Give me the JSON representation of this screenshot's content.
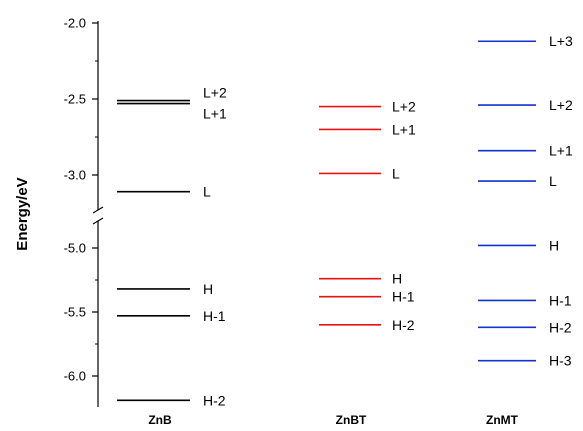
{
  "chart_data": {
    "type": "energy-level diagram",
    "title": "",
    "ylabel": "Energy/eV",
    "axis_break": true,
    "y_ticks": [
      "-2.0",
      "-2.5",
      "-3.0",
      "-5.0",
      "-5.5",
      "-6.0"
    ],
    "colors": {
      "ZnB": "#000000",
      "ZnBT": "#ee1111",
      "ZnMT": "#1133cc"
    },
    "categories": [
      "ZnB",
      "ZnBT",
      "ZnMT"
    ],
    "series": [
      {
        "name": "ZnB",
        "levels": [
          {
            "label": "L+2",
            "energy": -2.51
          },
          {
            "label": "L+1",
            "energy": -2.53
          },
          {
            "label": "L",
            "energy": -3.11
          },
          {
            "label": "H",
            "energy": -5.32
          },
          {
            "label": "H-1",
            "energy": -5.53
          },
          {
            "label": "H-2",
            "energy": -6.19
          }
        ]
      },
      {
        "name": "ZnBT",
        "levels": [
          {
            "label": "L+2",
            "energy": -2.55
          },
          {
            "label": "L+1",
            "energy": -2.7
          },
          {
            "label": "L",
            "energy": -2.99
          },
          {
            "label": "H",
            "energy": -5.24
          },
          {
            "label": "H-1",
            "energy": -5.38
          },
          {
            "label": "H-2",
            "energy": -5.6
          }
        ]
      },
      {
        "name": "ZnMT",
        "levels": [
          {
            "label": "L+3",
            "energy": -2.12
          },
          {
            "label": "L+2",
            "energy": -2.54
          },
          {
            "label": "L+1",
            "energy": -2.84
          },
          {
            "label": "L",
            "energy": -3.04
          },
          {
            "label": "H",
            "energy": -4.98
          },
          {
            "label": "H-1",
            "energy": -5.41
          },
          {
            "label": "H-2",
            "energy": -5.62
          },
          {
            "label": "H-3",
            "energy": -5.88
          }
        ]
      }
    ]
  }
}
